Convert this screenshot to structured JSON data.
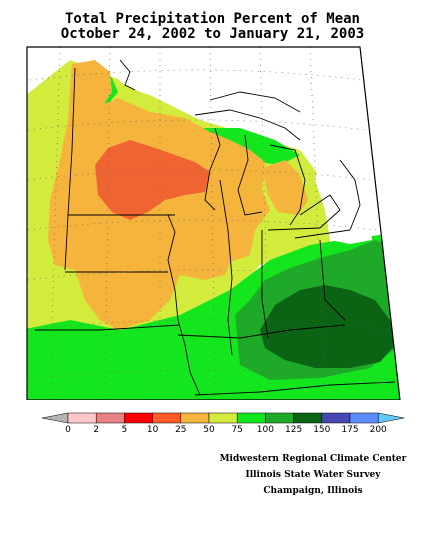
{
  "title": {
    "line1": "Total Precipitation Percent of Mean",
    "line2": "October 24, 2002 to January 21, 2003"
  },
  "legend": {
    "ticks": [
      "0",
      "2",
      "5",
      "10",
      "25",
      "50",
      "75",
      "100",
      "125",
      "150",
      "175",
      "200"
    ],
    "colors": [
      "#b4b4b4",
      "#ffc8c8",
      "#e68282",
      "#ff0000",
      "#ff5a28",
      "#f5b43c",
      "#d2eb3c",
      "#14e61e",
      "#1eaa28",
      "#0a6414",
      "#4646b4",
      "#5a8cff",
      "#64c8f5"
    ]
  },
  "map_colors": {
    "orange": "#f5b43c",
    "dark_orange": "#f06432",
    "yellow_green": "#d2eb3c",
    "bright_green": "#14e61e",
    "medium_green": "#1eaa28",
    "dark_green": "#0a6414"
  },
  "credits": {
    "line1": "Midwestern Regional Climate Center",
    "line2": "Illinois State Water Survey",
    "line3": "Champaign, Illinois"
  }
}
